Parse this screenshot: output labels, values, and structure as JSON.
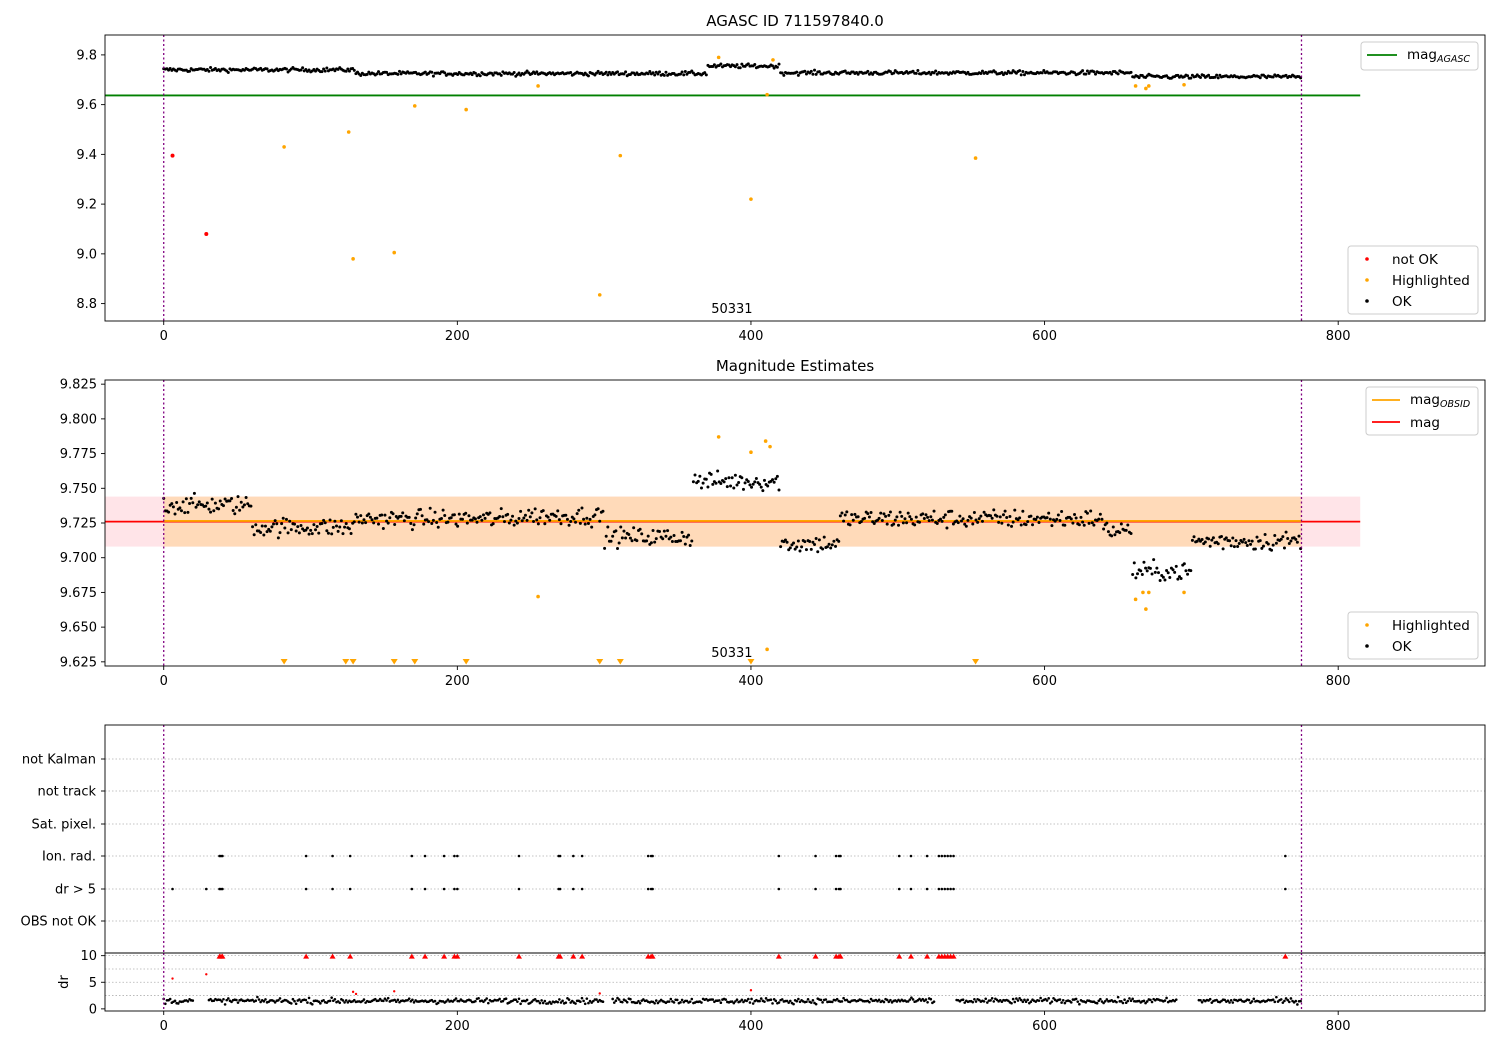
{
  "figure": {
    "background": "#ffffff",
    "colors": {
      "ok": "#000000",
      "highlighted": "#ffa500",
      "not_ok": "#ff0000",
      "mag_agasc": "#008000",
      "mag_obsid": "#ffa500",
      "mag": "#ff0000",
      "band_orange": "#ffdab9",
      "band_red": "#ffe4e8",
      "vline": "#800080",
      "grid": "#b0b0b0"
    }
  },
  "chart_data": [
    {
      "type": "scatter",
      "title": "AGASC ID 711597840.0",
      "xlabel": "",
      "ylabel": "",
      "xlim": [
        -40,
        900
      ],
      "ylim": [
        8.73,
        9.88
      ],
      "xticks": [
        0,
        200,
        400,
        600,
        800
      ],
      "yticks": [
        8.8,
        9.0,
        9.2,
        9.4,
        9.6,
        9.8
      ],
      "ytick_labels": [
        "8.8",
        "9.0",
        "9.2",
        "9.4",
        "9.6",
        "9.8"
      ],
      "annotation": "50331",
      "annotation_x": 387,
      "vlines": [
        0,
        775
      ],
      "mag_agasc": {
        "value": 9.637,
        "x_range": [
          -40,
          815
        ],
        "label": "mag",
        "label_sub": "AGASC"
      },
      "legend_markers": [
        {
          "key": "not_ok",
          "label": "not OK"
        },
        {
          "key": "highlighted",
          "label": "Highlighted"
        },
        {
          "key": "ok",
          "label": "OK"
        }
      ],
      "ok_series": {
        "name": "OK",
        "x_range": [
          0,
          775
        ],
        "base": 9.735,
        "segments": [
          {
            "x_end": 130,
            "value": 9.74
          },
          {
            "x_end": 370,
            "value": 9.725
          },
          {
            "x_end": 420,
            "value": 9.755
          },
          {
            "x_end": 660,
            "value": 9.728
          },
          {
            "x_end": 775,
            "value": 9.712
          }
        ],
        "noise": 0.015
      },
      "not_ok": [
        [
          6,
          9.395
        ],
        [
          29,
          9.08
        ]
      ],
      "highlighted": [
        [
          82,
          9.43
        ],
        [
          126,
          9.49
        ],
        [
          129,
          8.98
        ],
        [
          157,
          9.005
        ],
        [
          171,
          9.595
        ],
        [
          206,
          9.58
        ],
        [
          255,
          9.675
        ],
        [
          297,
          8.835
        ],
        [
          311,
          9.395
        ],
        [
          378,
          9.79
        ],
        [
          400,
          9.22
        ],
        [
          411,
          9.64
        ],
        [
          415,
          9.78
        ],
        [
          553,
          9.385
        ],
        [
          662,
          9.675
        ],
        [
          669,
          9.665
        ],
        [
          671,
          9.675
        ],
        [
          695,
          9.68
        ]
      ]
    },
    {
      "type": "scatter",
      "title": "Magnitude Estimates",
      "xlabel": "",
      "ylabel": "",
      "xlim": [
        -40,
        900
      ],
      "ylim": [
        9.622,
        9.828
      ],
      "xticks": [
        0,
        200,
        400,
        600,
        800
      ],
      "yticks": [
        9.625,
        9.65,
        9.675,
        9.7,
        9.725,
        9.75,
        9.775,
        9.8,
        9.825
      ],
      "ytick_labels": [
        "9.625",
        "9.650",
        "9.675",
        "9.700",
        "9.725",
        "9.750",
        "9.775",
        "9.800",
        "9.825"
      ],
      "annotation": "50331",
      "annotation_x": 387,
      "vlines": [
        0,
        775
      ],
      "band_orange": {
        "y_range": [
          9.708,
          9.744
        ],
        "x_range": [
          0,
          775
        ]
      },
      "band_red": {
        "y_range": [
          9.708,
          9.744
        ],
        "x_range": [
          -40,
          815
        ]
      },
      "mag_obsid": {
        "value": 9.7265,
        "x_range": [
          0,
          775
        ],
        "label": "mag",
        "label_sub": "OBSID"
      },
      "mag": {
        "value": 9.726,
        "x_range": [
          -40,
          815
        ],
        "label": "mag"
      },
      "legend_markers": [
        {
          "key": "highlighted",
          "label": "Highlighted"
        },
        {
          "key": "ok",
          "label": "OK"
        }
      ],
      "ok_series": {
        "name": "OK",
        "x_range": [
          0,
          775
        ],
        "segments": [
          {
            "x_end": 60,
            "value": 9.738
          },
          {
            "x_end": 130,
            "value": 9.722
          },
          {
            "x_end": 240,
            "value": 9.728
          },
          {
            "x_end": 300,
            "value": 9.73
          },
          {
            "x_end": 360,
            "value": 9.715
          },
          {
            "x_end": 420,
            "value": 9.755
          },
          {
            "x_end": 460,
            "value": 9.71
          },
          {
            "x_end": 520,
            "value": 9.728
          },
          {
            "x_end": 640,
            "value": 9.728
          },
          {
            "x_end": 660,
            "value": 9.72
          },
          {
            "x_end": 700,
            "value": 9.69
          },
          {
            "x_end": 775,
            "value": 9.712
          }
        ],
        "noise": 0.012
      },
      "highlighted": [
        [
          255,
          9.672
        ],
        [
          378,
          9.787
        ],
        [
          400,
          9.776
        ],
        [
          410,
          9.784
        ],
        [
          413,
          9.78
        ],
        [
          411,
          9.634
        ],
        [
          662,
          9.67
        ],
        [
          667,
          9.675
        ],
        [
          669,
          9.663
        ],
        [
          671,
          9.675
        ],
        [
          695,
          9.675
        ]
      ],
      "highlighted_triangles": [
        82,
        124,
        129,
        157,
        171,
        206,
        297,
        311,
        400,
        553
      ]
    },
    {
      "type": "scatter",
      "title": "",
      "xlabel": "",
      "ylabel": "",
      "xlim": [
        -40,
        900
      ],
      "xticks": [
        0,
        200,
        400,
        600,
        800
      ],
      "vlines": [
        0,
        775
      ],
      "flag_categories": [
        "not Kalman",
        "not track",
        "Sat. pixel.",
        "Ion. rad.",
        "dr > 5",
        "OBS not OK"
      ],
      "ion_rad": [
        38,
        39,
        40,
        97,
        115,
        127,
        169,
        178,
        191,
        198,
        200,
        242,
        269,
        270,
        279,
        285,
        330,
        332,
        333,
        419,
        444,
        458,
        460,
        461,
        501,
        509,
        520,
        528,
        530,
        532,
        534,
        536,
        538,
        764
      ],
      "dr_gt_5": [
        6,
        29,
        38,
        39,
        40,
        97,
        115,
        127,
        169,
        178,
        191,
        198,
        200,
        242,
        269,
        270,
        279,
        285,
        330,
        332,
        333,
        419,
        444,
        458,
        460,
        461,
        501,
        509,
        520,
        528,
        530,
        532,
        534,
        536,
        538,
        764
      ]
    },
    {
      "type": "scatter",
      "title": "",
      "xlabel": "",
      "ylabel": "dr",
      "xlim": [
        -40,
        900
      ],
      "ylim": [
        -0.4,
        10.5
      ],
      "xticks": [
        0,
        200,
        400,
        600,
        800
      ],
      "yticks": [
        0,
        5,
        10
      ],
      "ytick_labels": [
        "0",
        "5",
        "10"
      ],
      "vlines": [
        0,
        775
      ],
      "red_triangles": [
        38,
        39,
        40,
        97,
        115,
        127,
        169,
        178,
        191,
        198,
        200,
        242,
        269,
        270,
        279,
        285,
        330,
        332,
        333,
        419,
        444,
        458,
        460,
        461,
        501,
        509,
        520,
        528,
        530,
        532,
        534,
        536,
        538,
        764
      ],
      "red_dots": [
        [
          6,
          5.7
        ],
        [
          29,
          6.5
        ],
        [
          129,
          3.2
        ],
        [
          131,
          2.8
        ],
        [
          157,
          3.3
        ],
        [
          297,
          2.9
        ],
        [
          400,
          3.5
        ]
      ],
      "ok_series": {
        "name": "dr",
        "x_range": [
          0,
          775
        ],
        "value": 1.5,
        "noise": 0.9,
        "gaps": [
          [
            20,
            30
          ],
          [
            300,
            305
          ],
          [
            525,
            540
          ],
          [
            690,
            705
          ]
        ]
      }
    }
  ]
}
